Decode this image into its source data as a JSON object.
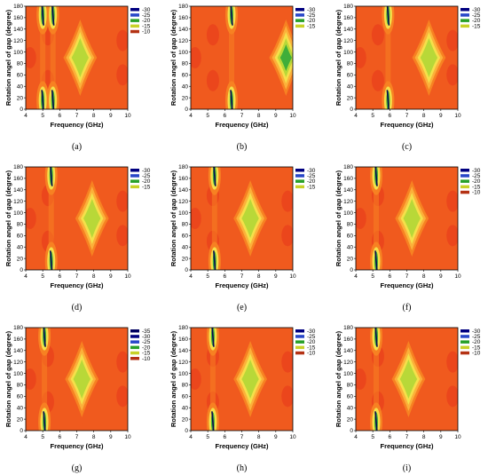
{
  "figure": {
    "x_label": "Frequency (GHz)",
    "y_label": "Rotation angel of gap (degree)",
    "x_ticks": [
      "4",
      "5",
      "6",
      "7",
      "8",
      "9",
      "10"
    ],
    "y_ticks": [
      "0",
      "20",
      "40",
      "60",
      "80",
      "100",
      "120",
      "140",
      "160",
      "180"
    ]
  },
  "chart_data": [
    {
      "type": "heatmap",
      "panel_label": "(a)",
      "xlabel": "Frequency (GHz)",
      "ylabel": "Rotation angel of gap (degree)",
      "xlim": [
        4,
        10
      ],
      "ylim": [
        0,
        180
      ],
      "legend": [
        "-30",
        "-25",
        "-20",
        "-15",
        "-10"
      ],
      "legend_colors": [
        "#000080",
        "#2846c8",
        "#28a028",
        "#c8d228",
        "#b43214"
      ],
      "features": {
        "stripe_x": [
          5.0,
          5.6
        ],
        "center_dip": {
          "x": 7.2,
          "y": 90,
          "depth": -20
        }
      }
    },
    {
      "type": "heatmap",
      "panel_label": "(b)",
      "xlabel": "Frequency (GHz)",
      "ylabel": "Rotation angel of gap (degree)",
      "xlim": [
        4,
        10
      ],
      "ylim": [
        0,
        180
      ],
      "legend": [
        "-30",
        "-25",
        "-20",
        "-15"
      ],
      "legend_colors": [
        "#000080",
        "#2846c8",
        "#28a028",
        "#c8d228"
      ],
      "features": {
        "stripe_x": [
          6.4
        ],
        "center_dip": {
          "x": 9.6,
          "y": 90,
          "depth": -25
        }
      }
    },
    {
      "type": "heatmap",
      "panel_label": "(c)",
      "xlabel": "Frequency (GHz)",
      "ylabel": "Rotation angel of gap (degree)",
      "xlim": [
        4,
        10
      ],
      "ylim": [
        0,
        180
      ],
      "legend": [
        "-30",
        "-25",
        "-20",
        "-15"
      ],
      "legend_colors": [
        "#000080",
        "#2846c8",
        "#28a028",
        "#c8d228"
      ],
      "features": {
        "stripe_x": [
          5.9
        ],
        "center_dip": {
          "x": 8.3,
          "y": 90,
          "depth": -20
        }
      }
    },
    {
      "type": "heatmap",
      "panel_label": "(d)",
      "xlabel": "Frequency (GHz)",
      "ylabel": "Rotation angel of gap (degree)",
      "xlim": [
        4,
        10
      ],
      "ylim": [
        0,
        180
      ],
      "legend": [
        "-30",
        "-25",
        "-20",
        "-15"
      ],
      "legend_colors": [
        "#000080",
        "#2846c8",
        "#28a028",
        "#c8d228"
      ],
      "features": {
        "stripe_x": [
          5.5
        ],
        "center_dip": {
          "x": 7.9,
          "y": 90,
          "depth": -20
        }
      }
    },
    {
      "type": "heatmap",
      "panel_label": "(e)",
      "xlabel": "Frequency (GHz)",
      "ylabel": "Rotation angel of gap (degree)",
      "xlim": [
        4,
        10
      ],
      "ylim": [
        0,
        180
      ],
      "legend": [
        "-30",
        "-25",
        "-20",
        "-15"
      ],
      "legend_colors": [
        "#000080",
        "#2846c8",
        "#28a028",
        "#c8d228"
      ],
      "features": {
        "stripe_x": [
          5.4
        ],
        "center_dip": {
          "x": 7.5,
          "y": 90,
          "depth": -22
        }
      }
    },
    {
      "type": "heatmap",
      "panel_label": "(f)",
      "xlabel": "Frequency (GHz)",
      "ylabel": "Rotation angel of gap (degree)",
      "xlim": [
        4,
        10
      ],
      "ylim": [
        0,
        180
      ],
      "legend": [
        "-30",
        "-25",
        "-20",
        "-15",
        "-10"
      ],
      "legend_colors": [
        "#000080",
        "#2846c8",
        "#28a028",
        "#c8d228",
        "#b43214"
      ],
      "features": {
        "stripe_x": [
          5.2
        ],
        "center_dip": {
          "x": 7.3,
          "y": 90,
          "depth": -22
        }
      }
    },
    {
      "type": "heatmap",
      "panel_label": "(g)",
      "xlabel": "Frequency (GHz)",
      "ylabel": "Rotation angel of gap (degree)",
      "xlim": [
        4,
        10
      ],
      "ylim": [
        0,
        180
      ],
      "legend": [
        "-35",
        "-30",
        "-25",
        "-20",
        "-15",
        "-10"
      ],
      "legend_colors": [
        "#000060",
        "#000080",
        "#2846c8",
        "#28a028",
        "#c8d228",
        "#b43214"
      ],
      "features": {
        "stripe_x": [
          5.1
        ],
        "center_dip": {
          "x": 7.3,
          "y": 90,
          "depth": -22
        }
      }
    },
    {
      "type": "heatmap",
      "panel_label": "(h)",
      "xlabel": "Frequency (GHz)",
      "ylabel": "Rotation angel of gap (degree)",
      "xlim": [
        4,
        10
      ],
      "ylim": [
        0,
        180
      ],
      "legend": [
        "-30",
        "-25",
        "-20",
        "-15",
        "-10"
      ],
      "legend_colors": [
        "#000080",
        "#2846c8",
        "#28a028",
        "#c8d228",
        "#b43214"
      ],
      "features": {
        "stripe_x": [
          5.3
        ],
        "center_dip": {
          "x": 7.5,
          "y": 90,
          "depth": -22
        }
      }
    },
    {
      "type": "heatmap",
      "panel_label": "(i)",
      "xlabel": "Frequency (GHz)",
      "ylabel": "Rotation angel of gap (degree)",
      "xlim": [
        4,
        10
      ],
      "ylim": [
        0,
        180
      ],
      "legend": [
        "-30",
        "-25",
        "-20",
        "-15",
        "-10"
      ],
      "legend_colors": [
        "#000080",
        "#2846c8",
        "#28a028",
        "#c8d228",
        "#b43214"
      ],
      "features": {
        "stripe_x": [
          5.2
        ],
        "center_dip": {
          "x": 7.1,
          "y": 90,
          "depth": -22
        }
      }
    }
  ]
}
